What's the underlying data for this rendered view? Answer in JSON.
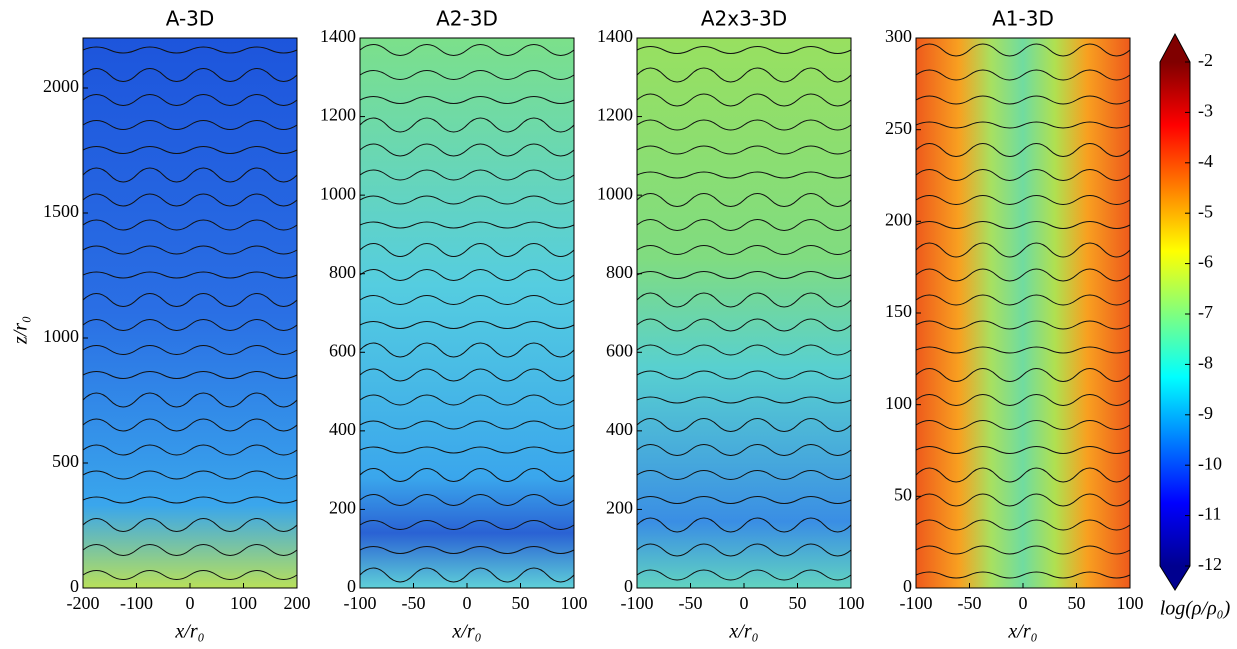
{
  "chart_data": [
    {
      "type": "heatmap",
      "title": "A-3D",
      "xlabel": "x/r₀",
      "ylabel": "z/r₀",
      "xlim": [
        -200,
        200
      ],
      "xticks": [
        -200,
        -100,
        0,
        100,
        200
      ],
      "ylim": [
        0,
        2200
      ],
      "yticks": [
        0,
        500,
        1000,
        1500,
        2000
      ]
    },
    {
      "type": "heatmap",
      "title": "A2-3D",
      "xlabel": "x/r₀",
      "xlim": [
        -100,
        100
      ],
      "xticks": [
        -100,
        -50,
        0,
        50,
        100
      ],
      "ylim": [
        0,
        1400
      ],
      "yticks": [
        0,
        200,
        400,
        600,
        800,
        1000,
        1200,
        1400
      ]
    },
    {
      "type": "heatmap",
      "title": "A2x3-3D",
      "xlabel": "x/r₀",
      "xlim": [
        -100,
        100
      ],
      "xticks": [
        -100,
        -50,
        0,
        50,
        100
      ],
      "ylim": [
        0,
        1400
      ],
      "yticks": [
        0,
        200,
        400,
        600,
        800,
        1000,
        1200,
        1400
      ]
    },
    {
      "type": "heatmap",
      "title": "A1-3D",
      "xlabel": "x/r₀",
      "xlim": [
        -100,
        100
      ],
      "xticks": [
        -100,
        -50,
        0,
        50,
        100
      ],
      "ylim": [
        0,
        300
      ],
      "yticks": [
        0,
        50,
        100,
        150,
        200,
        250,
        300
      ]
    }
  ],
  "colorbar": {
    "label": "log(ρ/ρ₀)",
    "lim": [
      -12,
      -2
    ],
    "ticks": [
      -12,
      -11,
      -10,
      -9,
      -8,
      -7,
      -6,
      -5,
      -4,
      -3,
      -2
    ]
  }
}
